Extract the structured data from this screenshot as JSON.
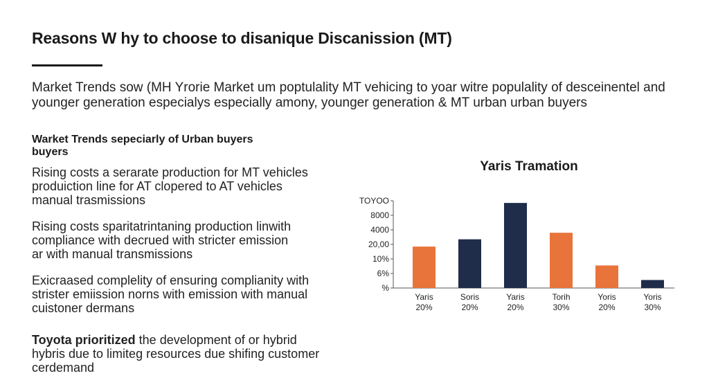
{
  "title": "Reasons W hy to choose to disanique Discanission (MT)",
  "intro": {
    "line1": "Market Trends sow (MH Yrorie Market um poptulality MT vehicing to yoar witre populality of desceinentel and",
    "line2": "younger generation especialys especially amony, younger generation & MT urban urban buyers"
  },
  "section": {
    "heading_line1": "Warket Trends sepeciarly of Urban buyers",
    "heading_line2": "buyers",
    "para1": [
      "Rising costs a serarate production  for MT vehicles",
      "produiction line for AT clopered to AT vehicles",
      "manual trasmissions"
    ],
    "para2": [
      "Rising costs sparitatrintaning production  linwith",
      "compliance with decrued with stricter emission",
      "ar with manual transmissions"
    ],
    "para3": [
      "Exicraased complelity of ensuring complianity with",
      "strister emiission norns with emission with manual",
      "cuistoner dermans"
    ],
    "para4_bold": "Toyota prioritized",
    "para4_rest": " the development of or hybrid",
    "para4_line2": "hybris  due to limiteg resources due shifing customer",
    "para4_line3": "cerdemand"
  },
  "chart_data": {
    "type": "bar",
    "title": "Yaris Tramation",
    "y_tick_labels": [
      "TOYOO",
      "8000",
      "4000",
      "20,00",
      "10%",
      "6%",
      "%"
    ],
    "categories": [
      {
        "name": "Yaris",
        "pct": "20%"
      },
      {
        "name": "Soris",
        "pct": "20%"
      },
      {
        "name": "Yaris",
        "pct": "20%"
      },
      {
        "name": "Torih",
        "pct": "30%"
      },
      {
        "name": "Yoris",
        "pct": "20%"
      },
      {
        "name": "Yoris",
        "pct": "30%"
      }
    ],
    "values": [
      2.85,
      3.35,
      5.85,
      3.8,
      1.55,
      0.55
    ],
    "ylim": [
      0,
      6
    ],
    "bar_colors": [
      "#e8743b",
      "#1f2d4a",
      "#1f2d4a",
      "#e8743b",
      "#e8743b",
      "#1f2d4a"
    ],
    "grid": false
  }
}
